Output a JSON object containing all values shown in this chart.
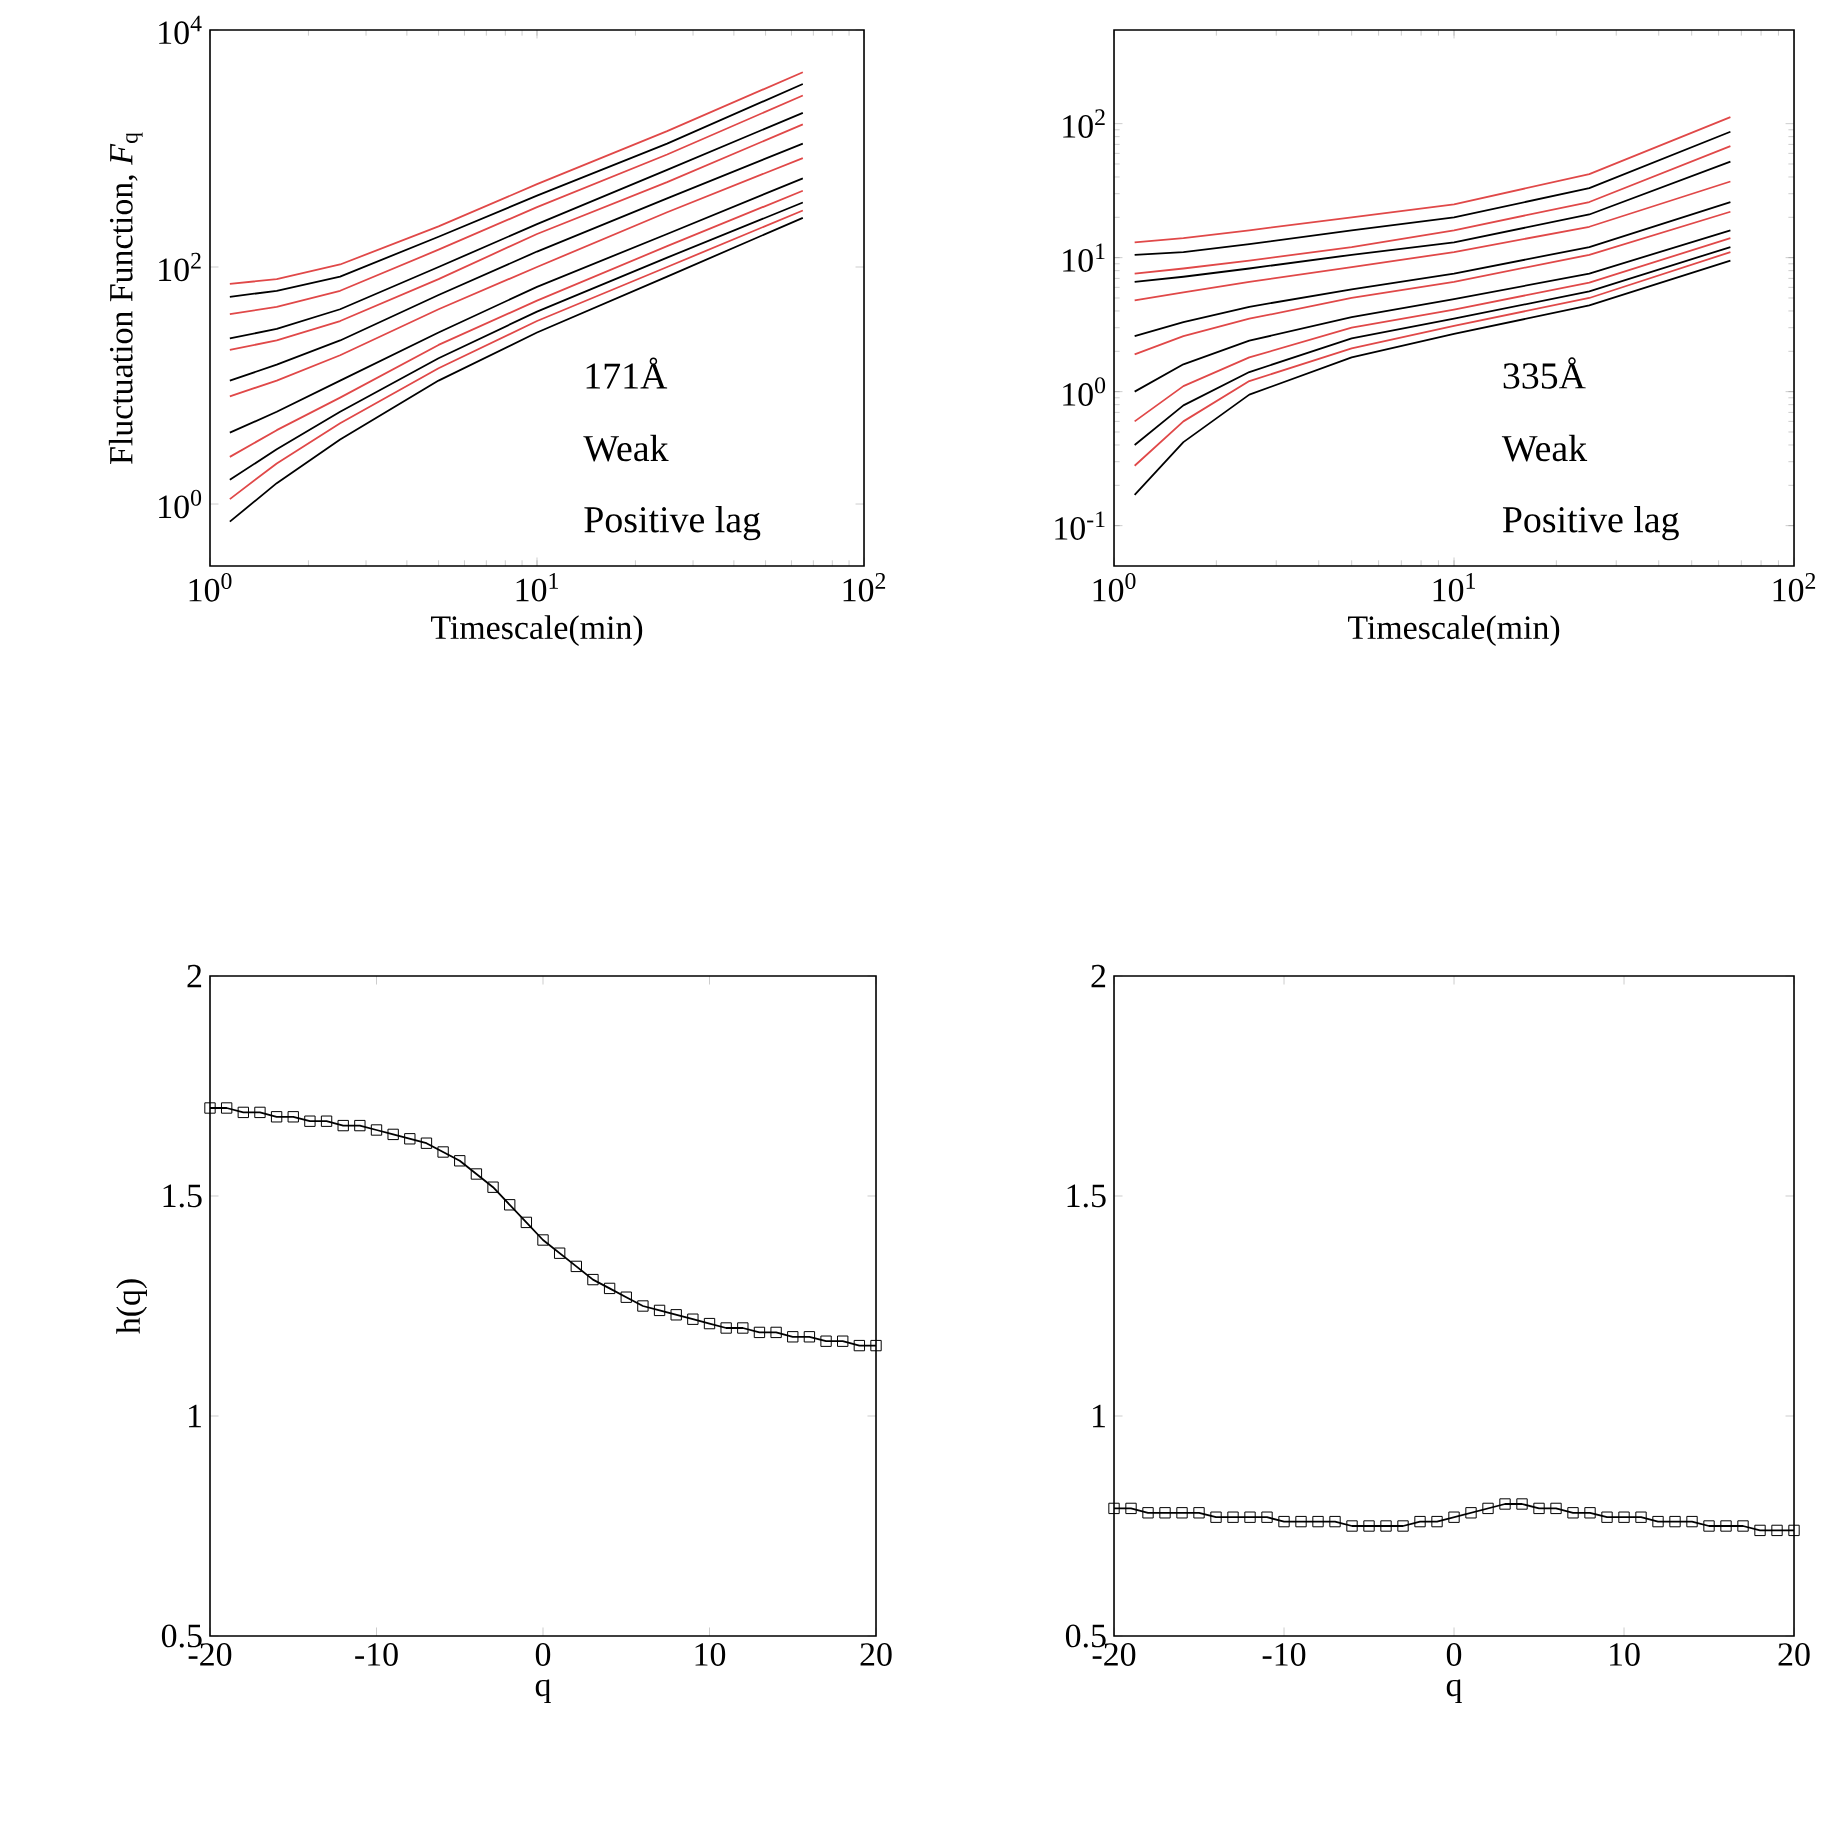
{
  "chart_data": [
    {
      "type": "line",
      "log": "xy",
      "ylabel": "Fluctuation Function, *F*$_{q}$",
      "xlabel": "Timescale(min)",
      "annotations": [
        "171Å",
        "Weak",
        "Positive lag"
      ],
      "xlim": [
        1,
        100
      ],
      "ylim": [
        0.3,
        10000
      ],
      "xticks": [
        {
          "value": 1,
          "label": "10$^{0}$"
        },
        {
          "value": 10,
          "label": "10$^{1}$"
        },
        {
          "value": 100,
          "label": "10$^{2}$"
        }
      ],
      "yticks": [
        {
          "value": 1,
          "label": "10$^{0}$"
        },
        {
          "value": 100,
          "label": "10$^{2}$"
        },
        {
          "value": 10000,
          "label": "10$^{4}$"
        }
      ],
      "x": [
        1.15,
        1.6,
        2.5,
        5,
        10,
        25,
        65
      ],
      "series": [
        {
          "color": "#e04848",
          "values": [
            72,
            79,
            105,
            220,
            500,
            1400,
            4400
          ]
        },
        {
          "color": "#000000",
          "values": [
            56,
            63,
            83,
            180,
            400,
            1100,
            3500
          ]
        },
        {
          "color": "#e04848",
          "values": [
            40,
            46,
            63,
            140,
            320,
            890,
            2800
          ]
        },
        {
          "color": "#000000",
          "values": [
            25,
            30,
            44,
            100,
            230,
            660,
            2000
          ]
        },
        {
          "color": "#e04848",
          "values": [
            20,
            24,
            35,
            79,
            190,
            520,
            1600
          ]
        },
        {
          "color": "#000000",
          "values": [
            11,
            15,
            24,
            58,
            135,
            380,
            1100
          ]
        },
        {
          "color": "#e04848",
          "values": [
            8.1,
            11,
            18,
            44,
            100,
            290,
            830
          ]
        },
        {
          "color": "#000000",
          "values": [
            4.0,
            6.0,
            11,
            28,
            68,
            190,
            560
          ]
        },
        {
          "color": "#e04848",
          "values": [
            2.5,
            4.2,
            7.9,
            22,
            52,
            150,
            440
          ]
        },
        {
          "color": "#000000",
          "values": [
            1.6,
            2.9,
            6.0,
            17,
            42,
            120,
            350
          ]
        },
        {
          "color": "#e04848",
          "values": [
            1.1,
            2.2,
            4.8,
            14,
            35,
            100,
            300
          ]
        },
        {
          "color": "#000000",
          "values": [
            0.71,
            1.5,
            3.5,
            11,
            28,
            83,
            260
          ]
        }
      ]
    },
    {
      "type": "line",
      "log": "xy",
      "xlabel": "Timescale(min)",
      "annotations": [
        "335Å",
        "Weak",
        "Positive lag"
      ],
      "xlim": [
        1,
        100
      ],
      "ylim": [
        0.05,
        500
      ],
      "xticks": [
        {
          "value": 1,
          "label": "10$^{0}$"
        },
        {
          "value": 10,
          "label": "10$^{1}$"
        },
        {
          "value": 100,
          "label": "10$^{2}$"
        }
      ],
      "yticks": [
        {
          "value": 0.1,
          "label": "10$^{-1}$"
        },
        {
          "value": 1,
          "label": "10$^{0}$"
        },
        {
          "value": 10,
          "label": "10$^{1}$"
        },
        {
          "value": 100,
          "label": "10$^{2}$"
        }
      ],
      "x": [
        1.15,
        1.6,
        2.5,
        5,
        10,
        25,
        65
      ],
      "series": [
        {
          "color": "#e04848",
          "values": [
            13,
            14,
            16,
            20,
            25,
            42,
            112
          ]
        },
        {
          "color": "#000000",
          "values": [
            10.5,
            11,
            12.6,
            16,
            20,
            33,
            87
          ]
        },
        {
          "color": "#e04848",
          "values": [
            7.6,
            8.3,
            9.5,
            12,
            16,
            26,
            68
          ]
        },
        {
          "color": "#000000",
          "values": [
            6.6,
            7.2,
            8.3,
            10.5,
            13,
            21,
            52
          ]
        },
        {
          "color": "#e04848",
          "values": [
            4.8,
            5.5,
            6.6,
            8.5,
            11,
            17,
            37
          ]
        },
        {
          "color": "#000000",
          "values": [
            2.6,
            3.3,
            4.3,
            5.8,
            7.6,
            12,
            26
          ]
        },
        {
          "color": "#e04848",
          "values": [
            1.9,
            2.6,
            3.5,
            5.0,
            6.6,
            10.5,
            22
          ]
        },
        {
          "color": "#000000",
          "values": [
            1.0,
            1.6,
            2.4,
            3.6,
            4.9,
            7.6,
            16
          ]
        },
        {
          "color": "#e04848",
          "values": [
            0.6,
            1.1,
            1.8,
            3.0,
            4.1,
            6.5,
            14
          ]
        },
        {
          "color": "#000000",
          "values": [
            0.4,
            0.79,
            1.4,
            2.5,
            3.5,
            5.6,
            12
          ]
        },
        {
          "color": "#e04848",
          "values": [
            0.28,
            0.6,
            1.2,
            2.1,
            3.1,
            5.0,
            11
          ]
        },
        {
          "color": "#000000",
          "values": [
            0.17,
            0.42,
            0.95,
            1.8,
            2.7,
            4.4,
            9.5
          ]
        }
      ]
    },
    {
      "type": "line",
      "marker": "square",
      "ylabel": "h(q)",
      "xlabel": "q",
      "xlim": [
        -20,
        20
      ],
      "ylim": [
        0.5,
        2
      ],
      "xticks": [
        -20,
        -10,
        0,
        10,
        20
      ],
      "yticks": [
        0.5,
        1,
        1.5,
        2
      ],
      "x": [
        -20,
        -19,
        -18,
        -17,
        -16,
        -15,
        -14,
        -13,
        -12,
        -11,
        -10,
        -9,
        -8,
        -7,
        -6,
        -5,
        -4,
        -3,
        -2,
        -1,
        0,
        1,
        2,
        3,
        4,
        5,
        6,
        7,
        8,
        9,
        10,
        11,
        12,
        13,
        14,
        15,
        16,
        17,
        18,
        19,
        20
      ],
      "series": [
        {
          "color": "#000000",
          "values": [
            1.7,
            1.7,
            1.69,
            1.69,
            1.68,
            1.68,
            1.67,
            1.67,
            1.66,
            1.66,
            1.65,
            1.64,
            1.63,
            1.62,
            1.6,
            1.58,
            1.55,
            1.52,
            1.48,
            1.44,
            1.4,
            1.37,
            1.34,
            1.31,
            1.29,
            1.27,
            1.25,
            1.24,
            1.23,
            1.22,
            1.21,
            1.2,
            1.2,
            1.19,
            1.19,
            1.18,
            1.18,
            1.17,
            1.17,
            1.16,
            1.16
          ]
        }
      ]
    },
    {
      "type": "line",
      "marker": "square",
      "xlabel": "q",
      "xlim": [
        -20,
        20
      ],
      "ylim": [
        0.5,
        2
      ],
      "xticks": [
        -20,
        -10,
        0,
        10,
        20
      ],
      "yticks": [
        0.5,
        1,
        1.5,
        2
      ],
      "x": [
        -20,
        -19,
        -18,
        -17,
        -16,
        -15,
        -14,
        -13,
        -12,
        -11,
        -10,
        -9,
        -8,
        -7,
        -6,
        -5,
        -4,
        -3,
        -2,
        -1,
        0,
        1,
        2,
        3,
        4,
        5,
        6,
        7,
        8,
        9,
        10,
        11,
        12,
        13,
        14,
        15,
        16,
        17,
        18,
        19,
        20
      ],
      "series": [
        {
          "color": "#000000",
          "values": [
            0.79,
            0.79,
            0.78,
            0.78,
            0.78,
            0.78,
            0.77,
            0.77,
            0.77,
            0.77,
            0.76,
            0.76,
            0.76,
            0.76,
            0.75,
            0.75,
            0.75,
            0.75,
            0.76,
            0.76,
            0.77,
            0.78,
            0.79,
            0.8,
            0.8,
            0.79,
            0.79,
            0.78,
            0.78,
            0.77,
            0.77,
            0.77,
            0.76,
            0.76,
            0.76,
            0.75,
            0.75,
            0.75,
            0.74,
            0.74,
            0.74
          ]
        }
      ]
    }
  ]
}
